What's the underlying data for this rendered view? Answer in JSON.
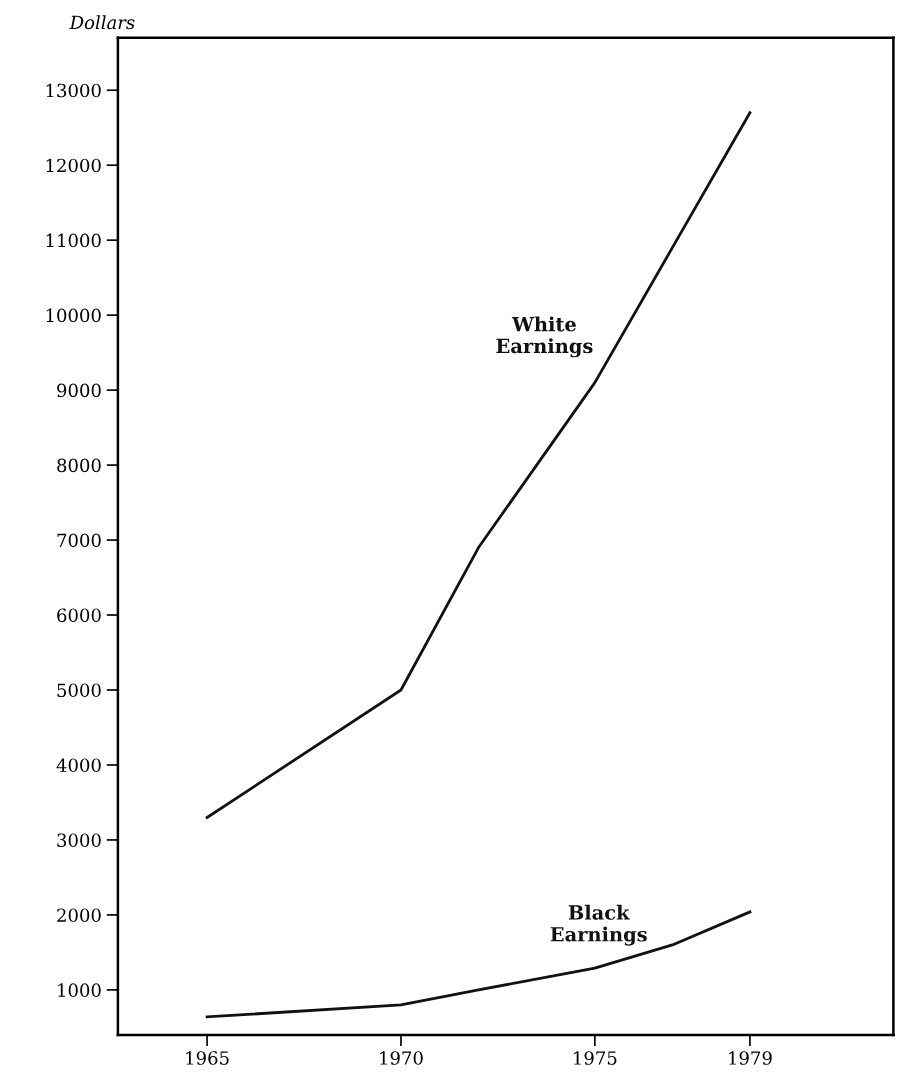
{
  "chart_data": {
    "type": "line",
    "ylabel": "Dollars",
    "x": [
      1965,
      1970,
      1972,
      1975,
      1977,
      1979
    ],
    "series": [
      {
        "name": "White Earnings",
        "color": "#111111",
        "values": [
          3300,
          5000,
          6900,
          9100,
          10900,
          12700
        ]
      },
      {
        "name": "Black Earnings",
        "color": "#111111",
        "x": [
          1965,
          1970,
          1972,
          1975,
          1977,
          1979
        ],
        "values": [
          640,
          800,
          1000,
          1290,
          1600,
          2040
        ]
      }
    ],
    "xlim": [
      1962.7,
      1982.7
    ],
    "xticks": [
      1965,
      1970,
      1975,
      1979
    ],
    "ylim": [
      400,
      13700
    ],
    "yticks": [
      1000,
      2000,
      3000,
      4000,
      5000,
      6000,
      7000,
      8000,
      9000,
      10000,
      11000,
      12000,
      13000
    ],
    "grid": false,
    "legend": false,
    "marker": "none",
    "line_style": "solid"
  }
}
